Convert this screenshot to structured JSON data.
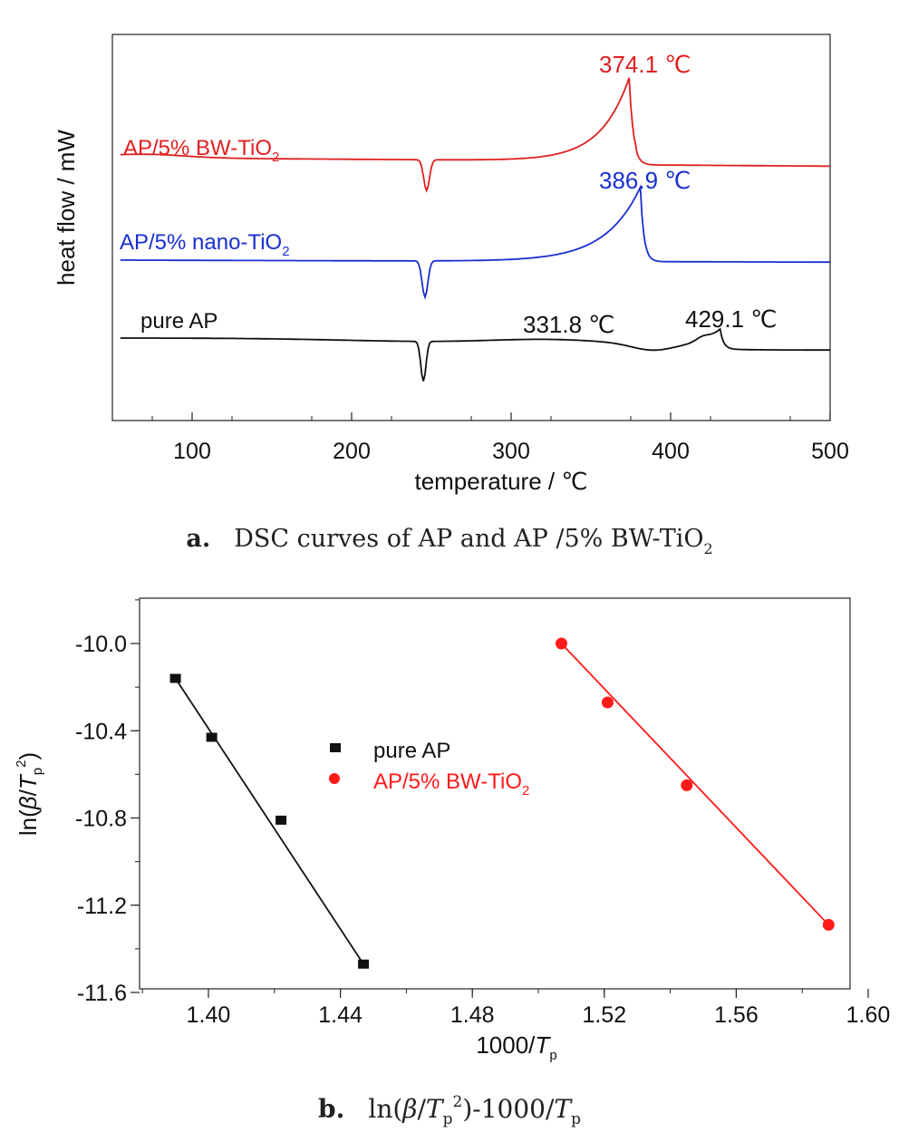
{
  "figures": {
    "a": {
      "caption_letter": "a.",
      "caption_text": "DSC curves of AP and AP /5% BW-TiO",
      "caption_sub": "2"
    },
    "b": {
      "caption_letter": "b.",
      "caption_pre": "ln(",
      "caption_beta": "β",
      "caption_slash": "/",
      "caption_T": "T",
      "caption_p": "p",
      "caption_sup": "2",
      "caption_mid": ")-1000/",
      "caption_T2": "T",
      "caption_p2": "p"
    }
  },
  "chart_data": [
    {
      "type": "line",
      "xlabel": "temperature / ℃",
      "ylabel": "heat flow / mW",
      "xlim": [
        50,
        500
      ],
      "x_ticks": [
        100,
        200,
        300,
        400,
        500
      ],
      "y_ticks": [],
      "grid": false,
      "series": [
        {
          "name": "AP/5% BW-TiO",
          "name_sub": "2",
          "color": "#e02020",
          "peaks": [
            {
              "x": 247,
              "kind": "endotherm"
            },
            {
              "x": 374.1,
              "kind": "exotherm",
              "label": "374.1 ℃"
            }
          ]
        },
        {
          "name": "AP/5% nano-TiO",
          "name_sub": "2",
          "color": "#1a2fd0",
          "peaks": [
            {
              "x": 246,
              "kind": "endotherm"
            },
            {
              "x": 386.9,
              "kind": "exotherm",
              "label": "386.9 ℃"
            }
          ]
        },
        {
          "name": "pure AP",
          "color": "#111111",
          "peaks": [
            {
              "x": 245,
              "kind": "endotherm"
            },
            {
              "x": 331.8,
              "kind": "exotherm",
              "label": "331.8 ℃"
            },
            {
              "x": 429.1,
              "kind": "exotherm",
              "label": "429.1 ℃"
            }
          ]
        }
      ]
    },
    {
      "type": "scatter",
      "xlabel": "1000/",
      "xlabel_T": "T",
      "xlabel_sub": "p",
      "ylabel_pre": "ln(",
      "ylabel_beta": "β",
      "ylabel_slash": "/",
      "ylabel_T": "T",
      "ylabel_sub": "p",
      "ylabel_sup": "2",
      "ylabel_post": ")",
      "xlim": [
        1.38,
        1.6
      ],
      "ylim": [
        -11.6,
        -9.7
      ],
      "x_ticks": [
        "1.40",
        "1.44",
        "1.48",
        "1.52",
        "1.56",
        "1.60"
      ],
      "y_ticks": [
        "-10.0",
        "-10.4",
        "-10.8",
        "-11.2",
        "-11.6"
      ],
      "grid": false,
      "legend_position": "center",
      "series": [
        {
          "name": "pure AP",
          "marker": "square",
          "color": "#111111",
          "x": [
            1.39,
            1.401,
            1.422,
            1.447
          ],
          "y": [
            -10.16,
            -10.43,
            -10.81,
            -11.47
          ],
          "fit": [
            [
              1.39,
              -10.16
            ],
            [
              1.447,
              -11.47
            ]
          ]
        },
        {
          "name": "AP/5% BW-TiO",
          "name_sub": "2",
          "marker": "circle",
          "color": "#ff1a1a",
          "x": [
            1.507,
            1.521,
            1.545,
            1.588
          ],
          "y": [
            -10.0,
            -10.27,
            -10.65,
            -11.29
          ],
          "fit": [
            [
              1.507,
              -10.0
            ],
            [
              1.588,
              -11.29
            ]
          ]
        }
      ]
    }
  ]
}
